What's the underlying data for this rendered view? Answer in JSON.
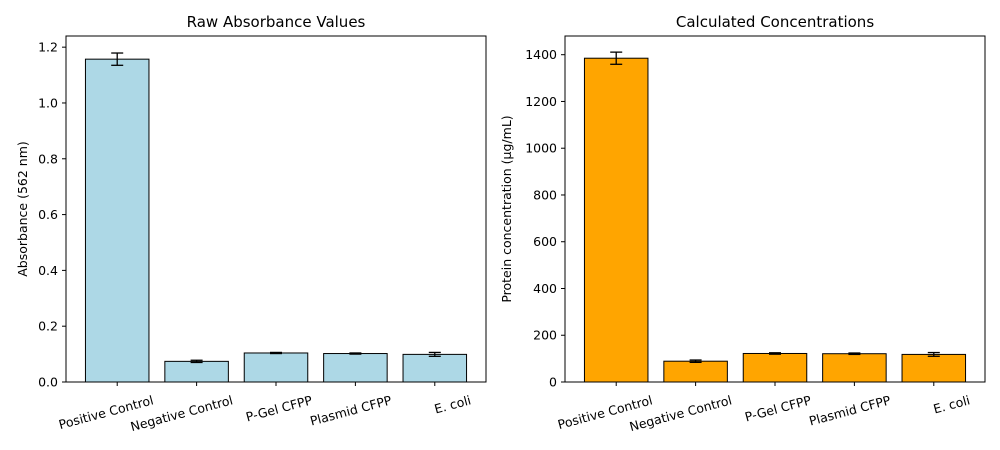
{
  "chart_data": [
    {
      "type": "bar",
      "title": "Raw Absorbance Values",
      "xlabel": "",
      "ylabel": "Absorbance (562 nm)",
      "categories": [
        "Positive Control",
        "Negative Control",
        "P-Gel CFPP",
        "Plasmid CFPP",
        "E. coli"
      ],
      "values": [
        1.157,
        0.074,
        0.104,
        0.102,
        0.099
      ],
      "errors": [
        0.022,
        0.004,
        0.002,
        0.002,
        0.007
      ],
      "ylim": [
        0,
        1.24
      ],
      "yticks": [
        0.0,
        0.2,
        0.4,
        0.6,
        0.8,
        1.0,
        1.2
      ],
      "ytick_labels": [
        "0.0",
        "0.2",
        "0.4",
        "0.6",
        "0.8",
        "1.0",
        "1.2"
      ],
      "color": "#add8e6",
      "grid": false
    },
    {
      "type": "bar",
      "title": "Calculated Concentrations",
      "xlabel": "",
      "ylabel": "Protein concentration (µg/mL)",
      "categories": [
        "Positive Control",
        "Negative Control",
        "P-Gel CFPP",
        "Plasmid CFPP",
        "E. coli"
      ],
      "values": [
        1385,
        89,
        122,
        121,
        118
      ],
      "errors": [
        26,
        5,
        3,
        3,
        8
      ],
      "ylim": [
        0,
        1480
      ],
      "yticks": [
        0,
        200,
        400,
        600,
        800,
        1000,
        1200,
        1400
      ],
      "ytick_labels": [
        "0",
        "200",
        "400",
        "600",
        "800",
        "1000",
        "1200",
        "1400"
      ],
      "color": "#ffa500",
      "grid": false
    }
  ]
}
